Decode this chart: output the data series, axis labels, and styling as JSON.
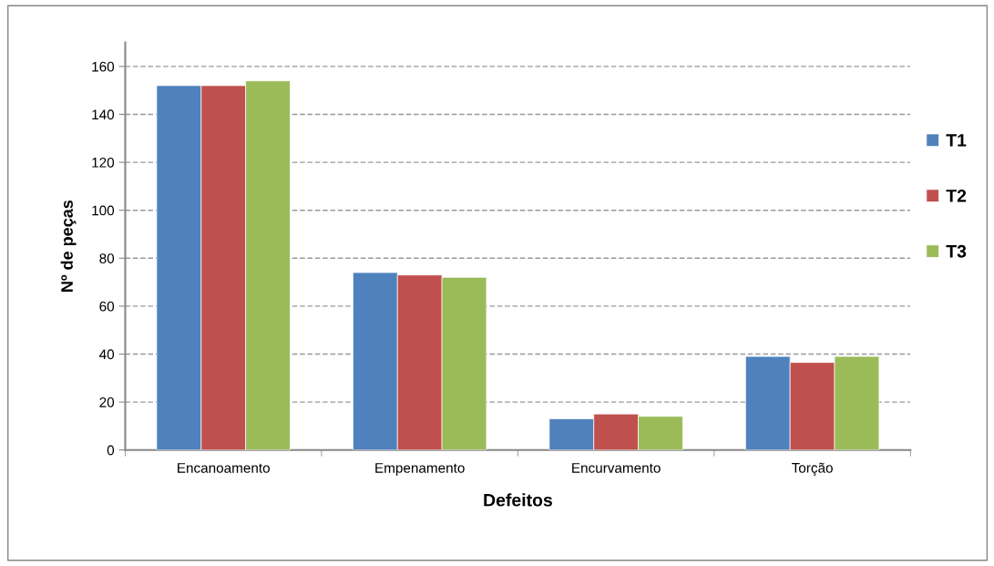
{
  "chart_data": {
    "type": "bar",
    "xlabel": "Defeitos",
    "ylabel": "Nº de peças",
    "categories": [
      "Encanoamento",
      "Empenamento",
      "Encurvamento",
      "Torção"
    ],
    "series": [
      {
        "name": "T1",
        "color": "#4f81bd",
        "values": [
          152,
          74,
          13,
          39
        ]
      },
      {
        "name": "T2",
        "color": "#c0504d",
        "values": [
          152,
          73,
          15,
          36.5
        ]
      },
      {
        "name": "T3",
        "color": "#9bbb59",
        "values": [
          154,
          72,
          14,
          39
        ]
      }
    ],
    "ylim": [
      0,
      170
    ],
    "yticks": [
      0,
      20,
      40,
      60,
      80,
      100,
      120,
      140,
      160
    ],
    "grid": "y",
    "legend": "right"
  }
}
